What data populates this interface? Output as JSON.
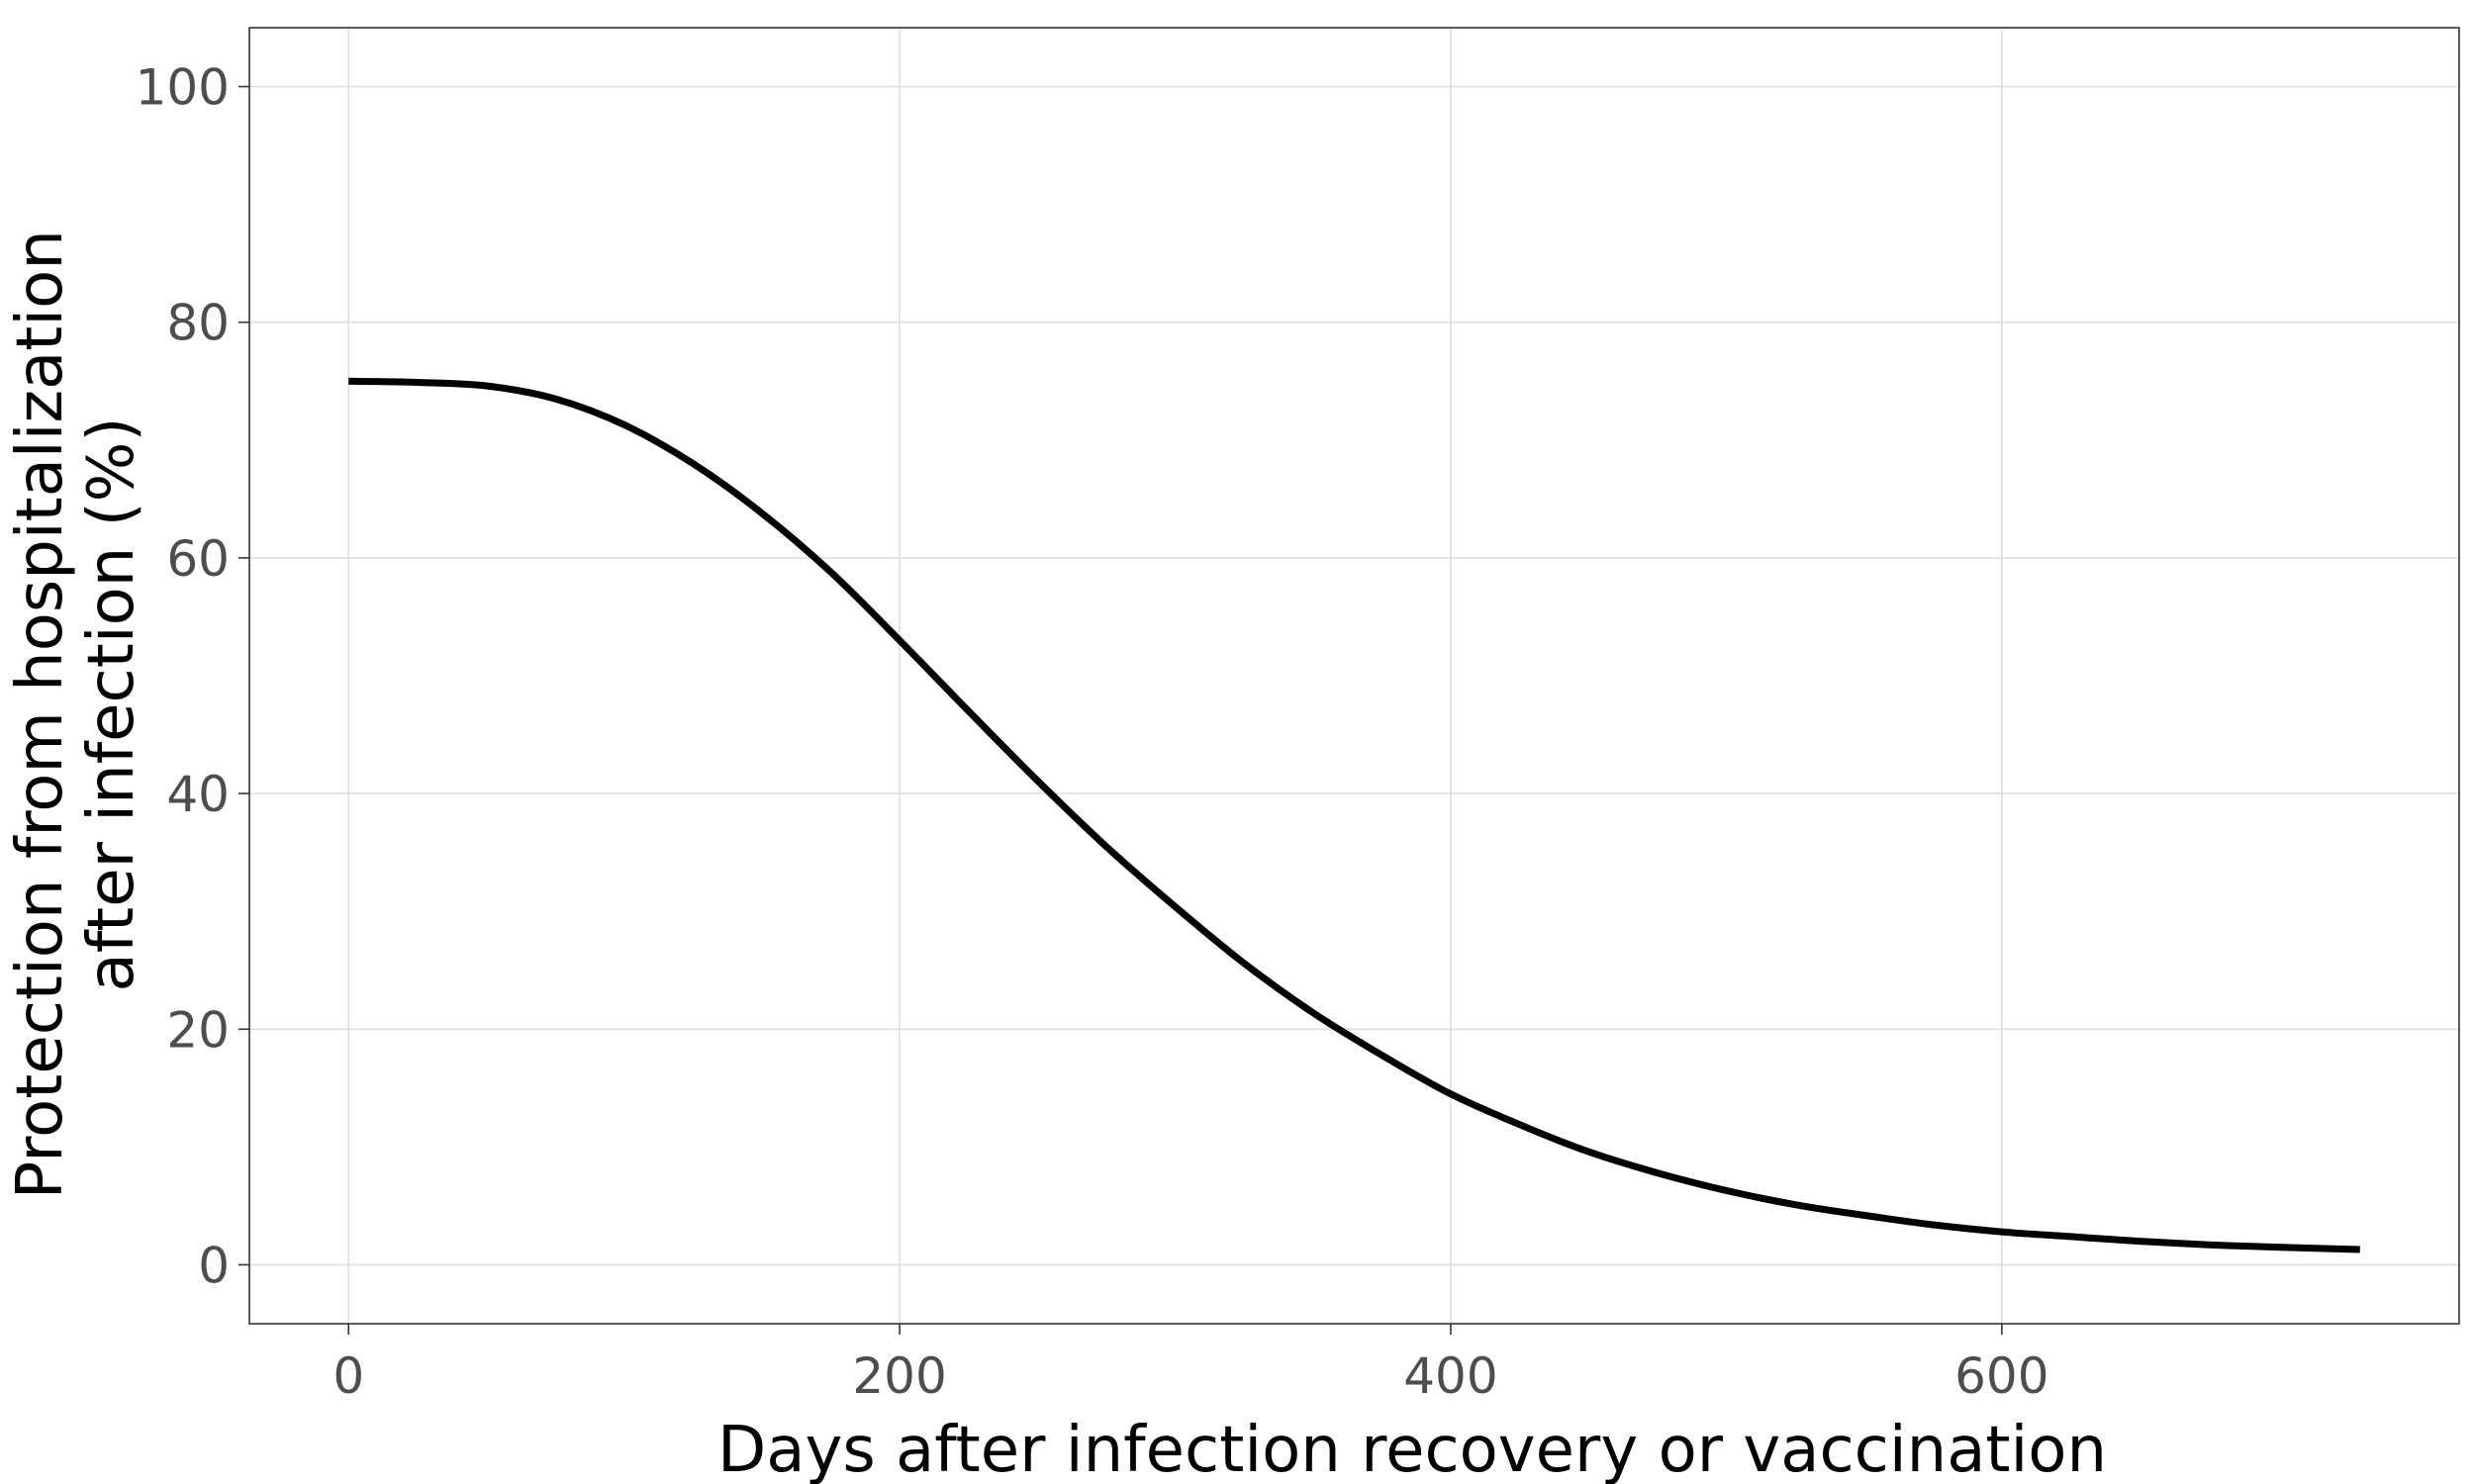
{
  "chart_data": {
    "type": "line",
    "title": "",
    "xlabel": "Days after infection recovery or vaccination",
    "ylabel_lines": [
      "Protection from hospitalization",
      "after infection (%)"
    ],
    "xlim": [
      -36,
      766
    ],
    "ylim": [
      -5,
      105
    ],
    "x_ticks": [
      0,
      200,
      400,
      600
    ],
    "y_ticks": [
      0,
      20,
      40,
      60,
      80,
      100
    ],
    "x_tick_labels": [
      "0",
      "200",
      "400",
      "600"
    ],
    "y_tick_labels": [
      "0",
      "20",
      "40",
      "60",
      "80",
      "100"
    ],
    "grid": true,
    "line_color": "#000000",
    "series": [
      {
        "x": [
          0,
          25,
          50,
          75,
          100,
          125,
          150,
          175,
          200,
          225,
          250,
          275,
          300,
          325,
          350,
          375,
          400,
          425,
          450,
          475,
          500,
          525,
          550,
          575,
          600,
          625,
          650,
          675,
          700,
          730
        ],
        "values": [
          75,
          74.9,
          74.6,
          73.5,
          71.3,
          68,
          63.8,
          58.8,
          53,
          47,
          41.1,
          35.5,
          30.4,
          25.6,
          21.4,
          17.8,
          14.5,
          11.9,
          9.6,
          7.8,
          6.3,
          5.1,
          4.2,
          3.4,
          2.8,
          2.4,
          2,
          1.7,
          1.5,
          1.3
        ]
      }
    ]
  }
}
